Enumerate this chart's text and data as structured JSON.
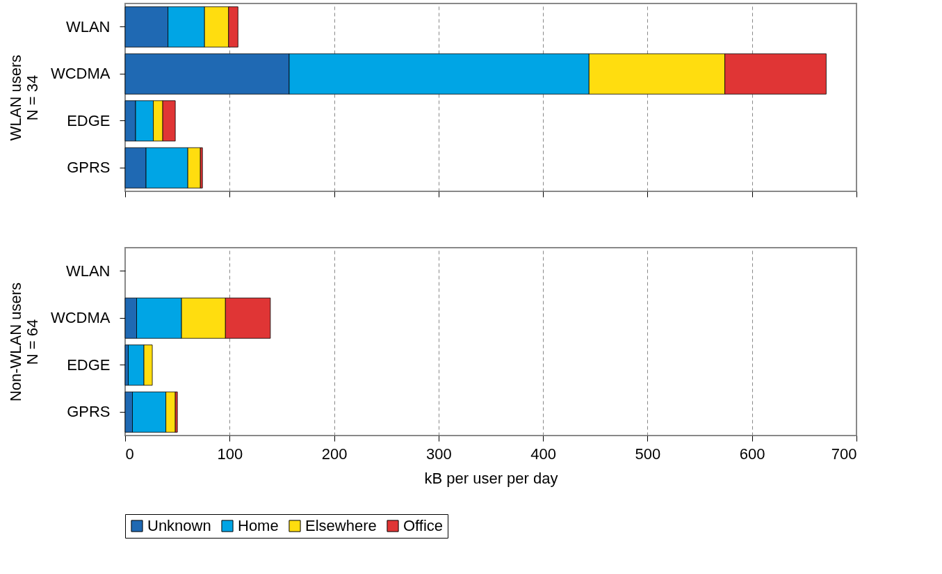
{
  "chart_data": [
    {
      "type": "bar",
      "orientation": "horizontal",
      "stacked": true,
      "ylabel": "WLAN users\nN = 34",
      "categories": [
        "WLAN",
        "WCDMA",
        "EDGE",
        "GPRS"
      ],
      "xlim": [
        0,
        700
      ],
      "xticks": [
        0,
        100,
        200,
        300,
        400,
        500,
        600,
        700
      ],
      "grid": "x",
      "tick_labels": "y",
      "legend": "bottom",
      "series": [
        {
          "name": "Unknown",
          "color": "#1f69b3",
          "values": [
            41,
            157,
            10,
            20
          ]
        },
        {
          "name": "Home",
          "color": "#00a5e5",
          "values": [
            35,
            287,
            17,
            40
          ]
        },
        {
          "name": "Elsewhere",
          "color": "#ffdd0f",
          "values": [
            23,
            130,
            9,
            12
          ]
        },
        {
          "name": "Office",
          "color": "#e03535",
          "values": [
            9,
            97,
            12,
            2
          ]
        }
      ]
    },
    {
      "type": "bar",
      "orientation": "horizontal",
      "stacked": true,
      "ylabel": "Non-WLAN users\nN = 64",
      "xlabel": "kB per user per day",
      "categories": [
        "WLAN",
        "WCDMA",
        "EDGE",
        "GPRS"
      ],
      "xlim": [
        0,
        700
      ],
      "xticks": [
        0,
        100,
        200,
        300,
        400,
        500,
        600,
        700
      ],
      "grid": "x",
      "legend": "bottom",
      "series": [
        {
          "name": "Unknown",
          "color": "#1f69b3",
          "values": [
            null,
            11,
            3,
            7
          ]
        },
        {
          "name": "Home",
          "color": "#00a5e5",
          "values": [
            null,
            43,
            15,
            32
          ]
        },
        {
          "name": "Elsewhere",
          "color": "#ffdd0f",
          "values": [
            null,
            42,
            8,
            9
          ]
        },
        {
          "name": "Office",
          "color": "#e03535",
          "values": [
            null,
            43,
            null,
            2
          ]
        }
      ]
    }
  ]
}
